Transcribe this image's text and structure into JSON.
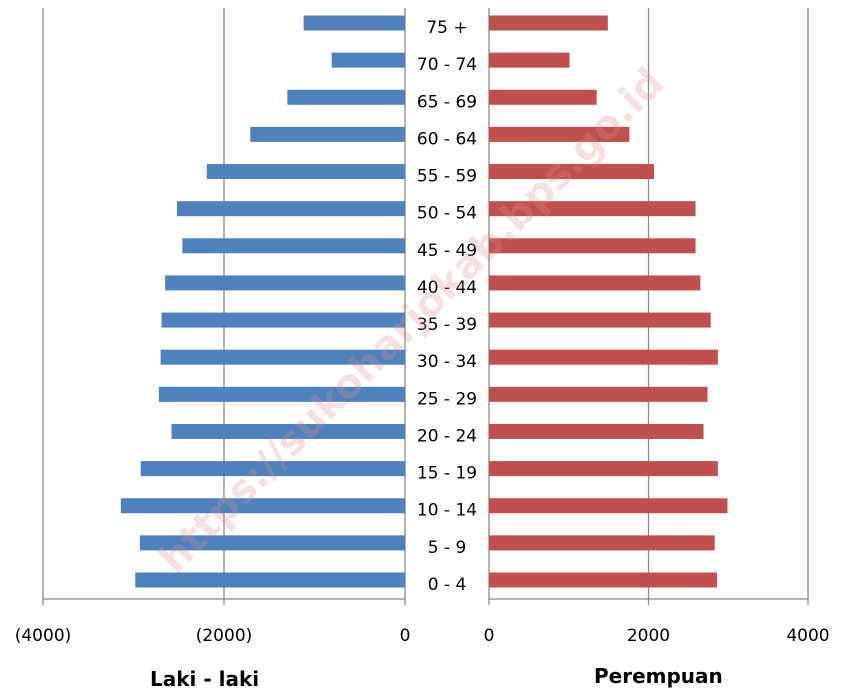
{
  "watermark": "https://sukoharjokab.bps.go.id",
  "chart_data": {
    "type": "bar",
    "orientation": "horizontal",
    "categories": [
      "0 - 4",
      "5 - 9",
      "10 - 14",
      "15 - 19",
      "20 - 24",
      "25 - 29",
      "30 - 34",
      "35 - 39",
      "40 - 44",
      "45 - 49",
      "50 - 54",
      "55 - 59",
      "60 - 64",
      "65 - 69",
      "70 - 74",
      "75 +"
    ],
    "series": [
      {
        "name": "Laki - laki",
        "color": "#4f81bd",
        "values": [
          2980,
          2930,
          3140,
          2920,
          2580,
          2720,
          2700,
          2690,
          2650,
          2460,
          2520,
          2190,
          1710,
          1300,
          810,
          1120
        ]
      },
      {
        "name": "Perempuan",
        "color": "#c0504d",
        "values": [
          2860,
          2830,
          2990,
          2870,
          2690,
          2740,
          2870,
          2780,
          2650,
          2590,
          2590,
          2070,
          1760,
          1350,
          1010,
          1490
        ]
      }
    ],
    "left_axis": {
      "ticks": [
        -4000,
        -2000,
        0
      ],
      "tick_labels": [
        "(4000)",
        "(2000)",
        "0"
      ],
      "xlim": [
        -4000,
        0
      ]
    },
    "right_axis": {
      "ticks": [
        0,
        2000,
        4000
      ],
      "tick_labels": [
        "0",
        "2000",
        "4000"
      ],
      "xlim": [
        0,
        4000
      ]
    },
    "grid": true
  },
  "labels": {
    "left": "Laki - laki",
    "right": "Perempuan"
  }
}
